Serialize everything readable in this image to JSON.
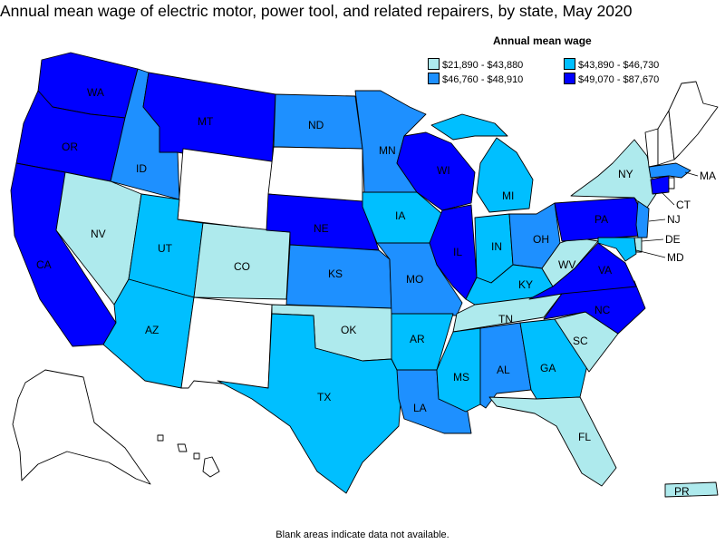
{
  "title": "Annual mean wage of electric motor, power tool, and related repairers, by state, May 2020",
  "legend": {
    "title": "Annual mean wage",
    "bins": [
      {
        "label": "$21,890 - $43,880",
        "color": "#aeeaed"
      },
      {
        "label": "$43,890 - $46,730",
        "color": "#00bfff"
      },
      {
        "label": "$46,760 - $48,910",
        "color": "#1e90ff"
      },
      {
        "label": "$49,070 - $87,670",
        "color": "#0000ff"
      }
    ]
  },
  "no_data_color": "#ffffff",
  "footnote": "Blank areas indicate data not available.",
  "states": [
    {
      "code": "WA",
      "bin": 3
    },
    {
      "code": "OR",
      "bin": 3
    },
    {
      "code": "CA",
      "bin": 3
    },
    {
      "code": "ID",
      "bin": 2
    },
    {
      "code": "NV",
      "bin": 0
    },
    {
      "code": "MT",
      "bin": 3
    },
    {
      "code": "WY",
      "bin": null
    },
    {
      "code": "UT",
      "bin": 1
    },
    {
      "code": "AZ",
      "bin": 1
    },
    {
      "code": "CO",
      "bin": 0
    },
    {
      "code": "NM",
      "bin": null
    },
    {
      "code": "ND",
      "bin": 2
    },
    {
      "code": "SD",
      "bin": null
    },
    {
      "code": "NE",
      "bin": 3
    },
    {
      "code": "KS",
      "bin": 2
    },
    {
      "code": "OK",
      "bin": 0
    },
    {
      "code": "TX",
      "bin": 1
    },
    {
      "code": "MN",
      "bin": 2
    },
    {
      "code": "IA",
      "bin": 1
    },
    {
      "code": "MO",
      "bin": 2
    },
    {
      "code": "AR",
      "bin": 1
    },
    {
      "code": "LA",
      "bin": 2
    },
    {
      "code": "WI",
      "bin": 3
    },
    {
      "code": "IL",
      "bin": 3
    },
    {
      "code": "MI",
      "bin": 1
    },
    {
      "code": "IN",
      "bin": 1
    },
    {
      "code": "OH",
      "bin": 2
    },
    {
      "code": "KY",
      "bin": 1
    },
    {
      "code": "TN",
      "bin": 0
    },
    {
      "code": "MS",
      "bin": 1
    },
    {
      "code": "AL",
      "bin": 2
    },
    {
      "code": "GA",
      "bin": 1
    },
    {
      "code": "FL",
      "bin": 0
    },
    {
      "code": "SC",
      "bin": 0
    },
    {
      "code": "NC",
      "bin": 3
    },
    {
      "code": "VA",
      "bin": 3
    },
    {
      "code": "WV",
      "bin": 0
    },
    {
      "code": "PA",
      "bin": 3
    },
    {
      "code": "NY",
      "bin": 0
    },
    {
      "code": "NJ",
      "bin": 2
    },
    {
      "code": "DE",
      "bin": 0
    },
    {
      "code": "MD",
      "bin": 1
    },
    {
      "code": "CT",
      "bin": 3
    },
    {
      "code": "MA",
      "bin": 2
    },
    {
      "code": "VT",
      "bin": null
    },
    {
      "code": "NH",
      "bin": null
    },
    {
      "code": "ME",
      "bin": null
    },
    {
      "code": "RI",
      "bin": null
    },
    {
      "code": "AK",
      "bin": null
    },
    {
      "code": "HI",
      "bin": null
    },
    {
      "code": "PR",
      "bin": 0
    }
  ]
}
